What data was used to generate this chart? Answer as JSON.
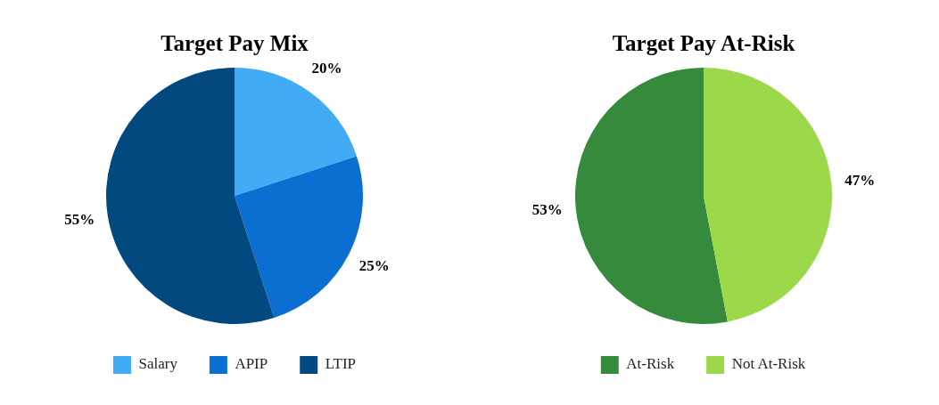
{
  "chart_data": [
    {
      "type": "pie",
      "title": "Target Pay Mix",
      "categories": [
        "Salary",
        "APIP",
        "LTIP"
      ],
      "values": [
        20,
        25,
        55
      ],
      "colors": [
        "#41abf5",
        "#0b6fd1",
        "#01497e"
      ],
      "value_labels": [
        "20%",
        "25%",
        "55%"
      ],
      "legend": "bottom"
    },
    {
      "type": "pie",
      "title": "Target Pay At-Risk",
      "categories": [
        "At-Risk",
        "Not At-Risk"
      ],
      "values": [
        53,
        47
      ],
      "colors": [
        "#368a3b",
        "#9bd94b"
      ],
      "value_labels": [
        "53%",
        "47%"
      ],
      "legend": "bottom"
    }
  ]
}
